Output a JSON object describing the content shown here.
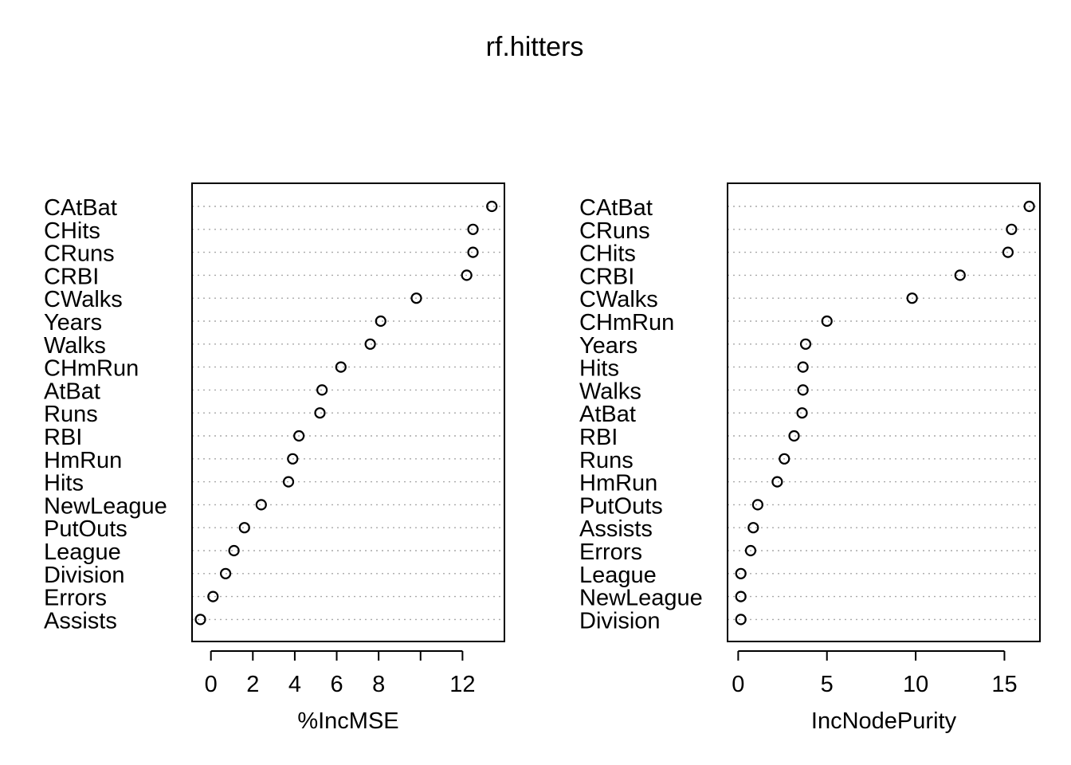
{
  "chart_data": {
    "type": "scatter",
    "title": "rf.hitters",
    "panels": [
      {
        "xlabel": "%IncMSE",
        "xticks": [
          0,
          2,
          4,
          6,
          8,
          10,
          12
        ],
        "xtick_labels": [
          "0",
          "2",
          "4",
          "6",
          "8",
          "",
          "12"
        ],
        "xlim": [
          -0.9,
          14.0
        ],
        "labels": [
          "CAtBat",
          "CHits",
          "CRuns",
          "CRBI",
          "CWalks",
          "Years",
          "Walks",
          "CHmRun",
          "AtBat",
          "Runs",
          "RBI",
          "HmRun",
          "Hits",
          "NewLeague",
          "PutOuts",
          "League",
          "Division",
          "Errors",
          "Assists"
        ],
        "values": [
          13.4,
          12.5,
          12.5,
          12.2,
          9.8,
          8.1,
          7.6,
          6.2,
          5.3,
          5.2,
          4.2,
          3.9,
          3.7,
          2.4,
          1.6,
          1.1,
          0.7,
          0.1,
          -0.5
        ]
      },
      {
        "xlabel": "IncNodePurity",
        "xticks": [
          0,
          5,
          10,
          15
        ],
        "xtick_labels": [
          "0",
          "5",
          "10",
          "15"
        ],
        "xlim": [
          -0.6,
          17.0
        ],
        "labels": [
          "CAtBat",
          "CRuns",
          "CHits",
          "CRBI",
          "CWalks",
          "CHmRun",
          "Years",
          "Hits",
          "Walks",
          "AtBat",
          "RBI",
          "Runs",
          "HmRun",
          "PutOuts",
          "Assists",
          "Errors",
          "League",
          "NewLeague",
          "Division"
        ],
        "values": [
          16.4,
          15.4,
          15.2,
          12.5,
          9.8,
          5.0,
          3.8,
          3.65,
          3.65,
          3.6,
          3.15,
          2.6,
          2.2,
          1.1,
          0.85,
          0.7,
          0.15,
          0.15,
          0.15
        ]
      }
    ],
    "grid": false,
    "legend": "none"
  }
}
